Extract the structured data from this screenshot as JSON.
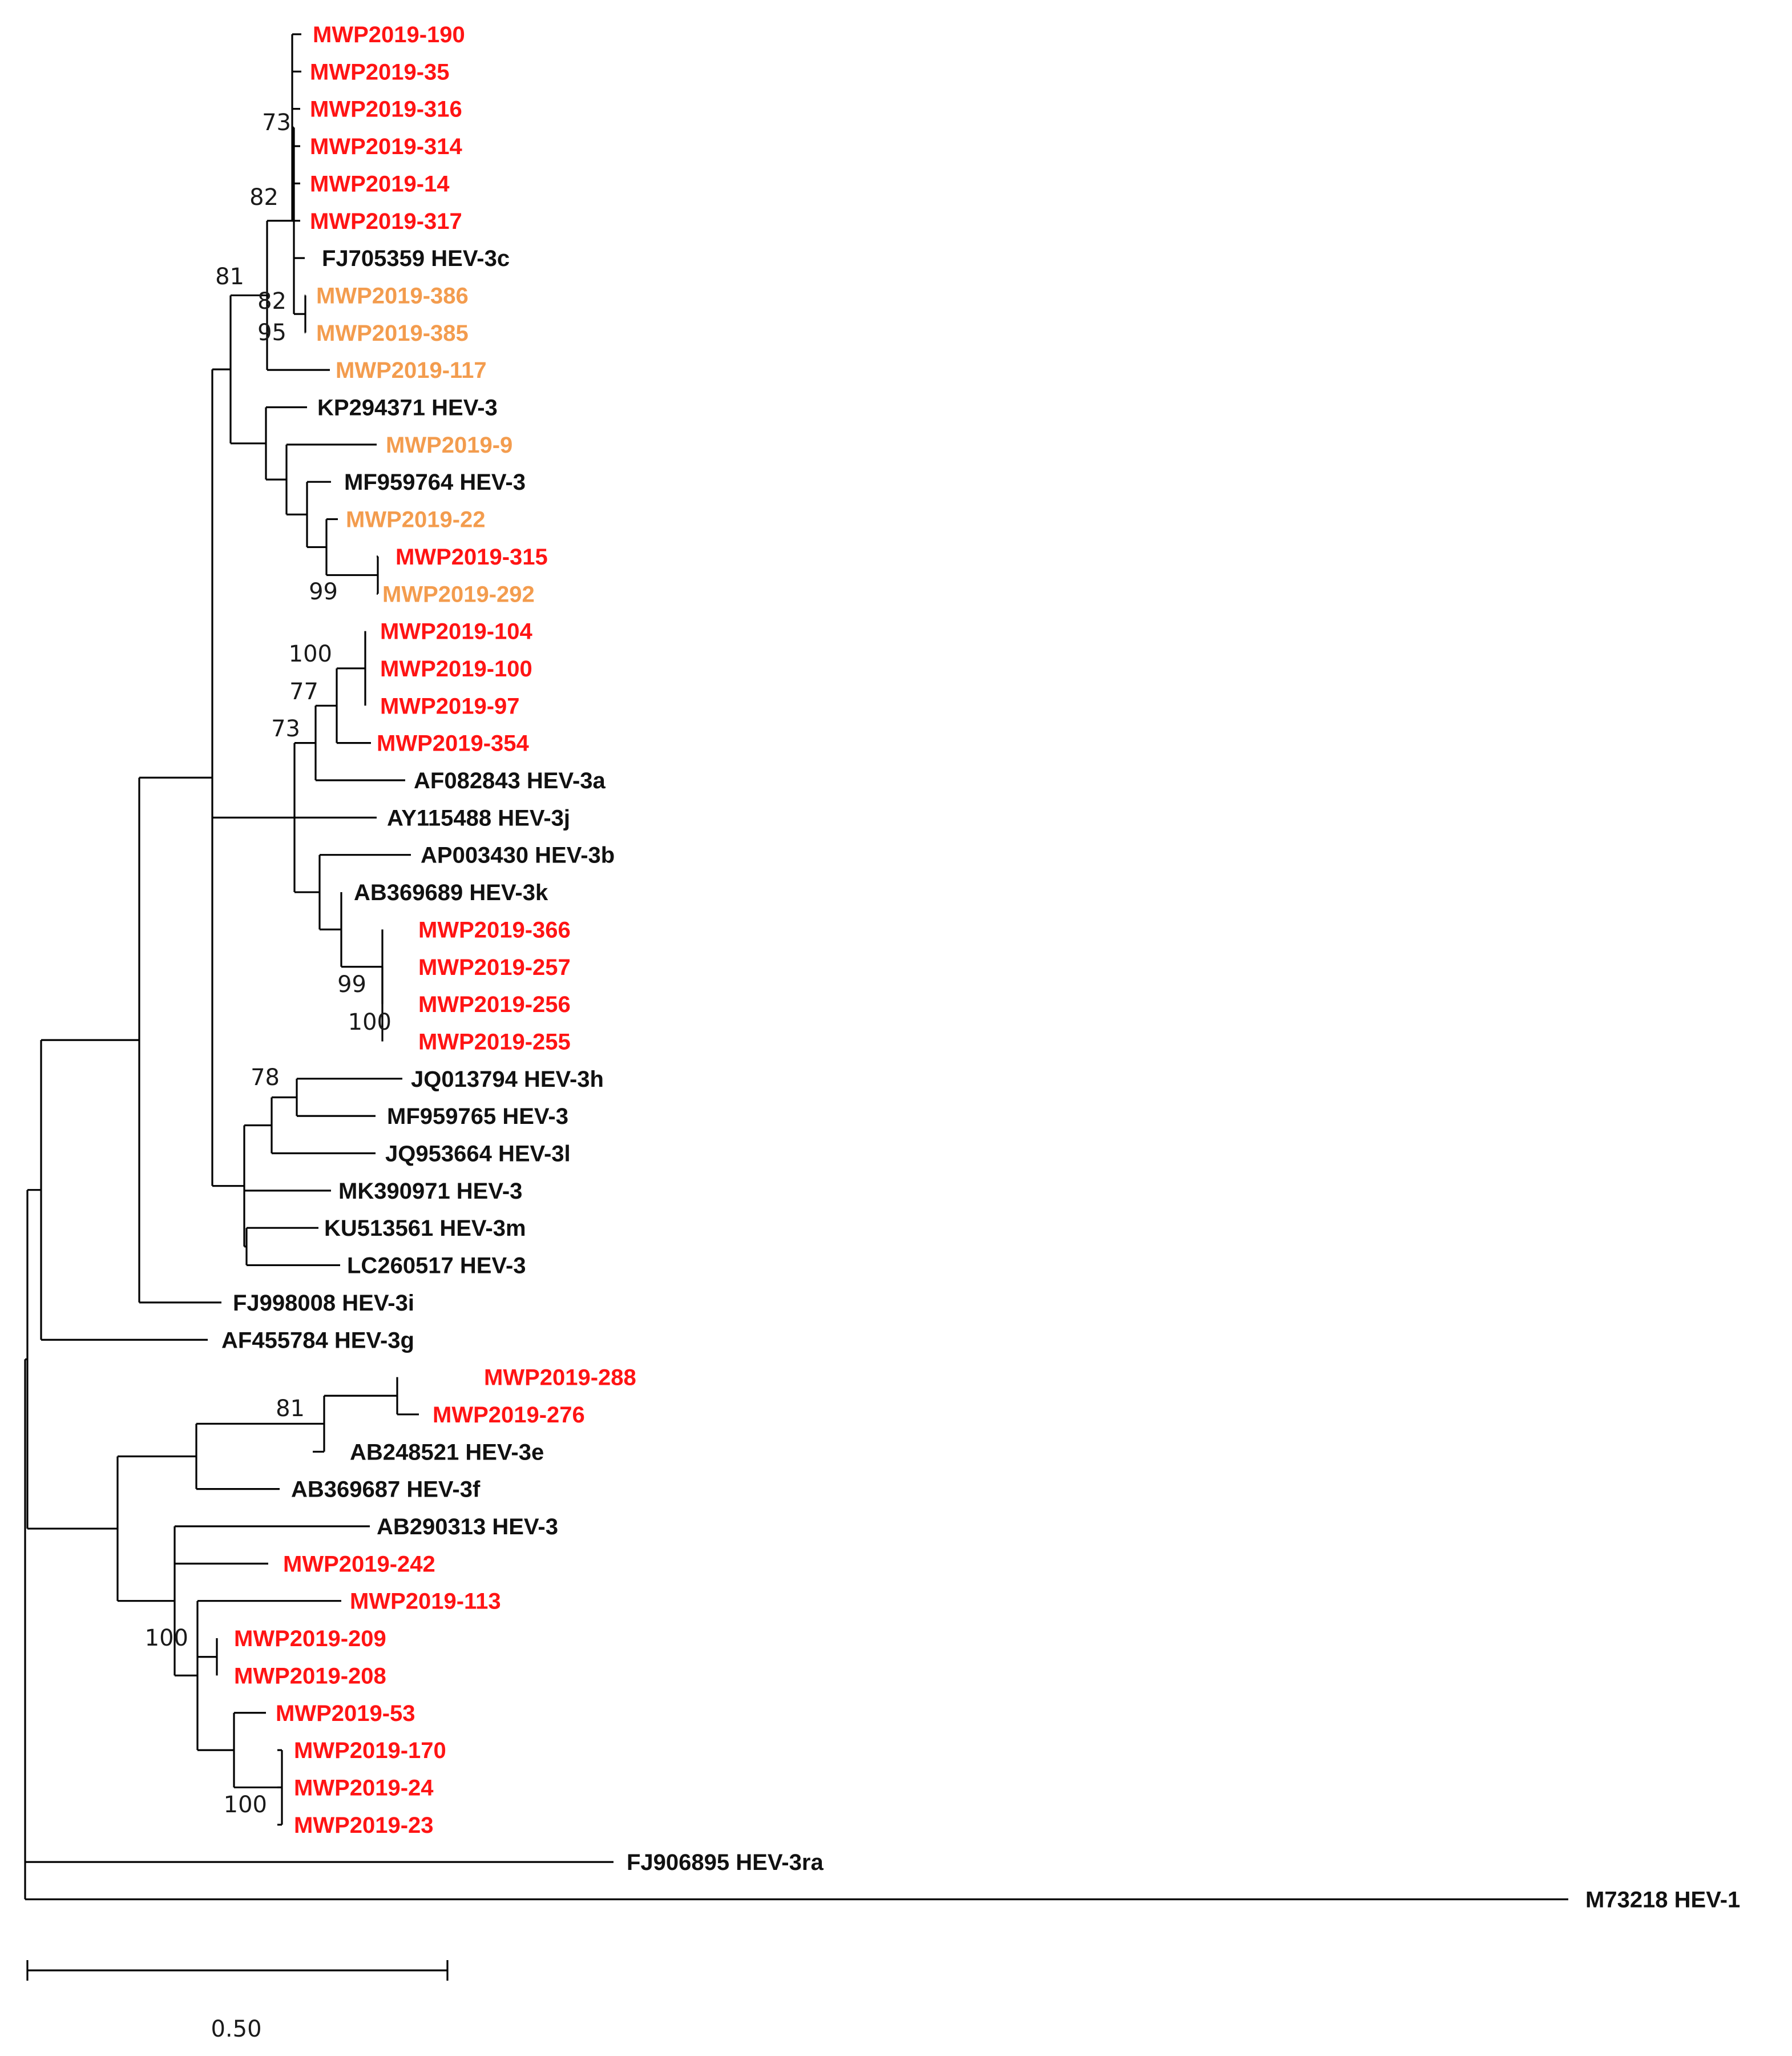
{
  "colors": {
    "red": "#ff1414",
    "orange": "#f39c4e",
    "black": "#111111"
  },
  "leaves": [
    {
      "label": "MWP2019-190",
      "color": "red"
    },
    {
      "label": "MWP2019-35",
      "color": "red"
    },
    {
      "label": "MWP2019-316",
      "color": "red"
    },
    {
      "label": "MWP2019-314",
      "color": "red"
    },
    {
      "label": "MWP2019-14",
      "color": "red"
    },
    {
      "label": "MWP2019-317",
      "color": "red"
    },
    {
      "label": "FJ705359 HEV-3c",
      "color": "black"
    },
    {
      "label": "MWP2019-386",
      "color": "orange"
    },
    {
      "label": "MWP2019-385",
      "color": "orange"
    },
    {
      "label": "MWP2019-117",
      "color": "orange"
    },
    {
      "label": "KP294371 HEV-3",
      "color": "black"
    },
    {
      "label": "MWP2019-9",
      "color": "orange"
    },
    {
      "label": "MF959764 HEV-3",
      "color": "black"
    },
    {
      "label": "MWP2019-22",
      "color": "orange"
    },
    {
      "label": "MWP2019-315",
      "color": "red"
    },
    {
      "label": "MWP2019-292",
      "color": "orange"
    },
    {
      "label": "MWP2019-104",
      "color": "red"
    },
    {
      "label": "MWP2019-100",
      "color": "red"
    },
    {
      "label": "MWP2019-97",
      "color": "red"
    },
    {
      "label": "MWP2019-354",
      "color": "red"
    },
    {
      "label": "AF082843 HEV-3a",
      "color": "black"
    },
    {
      "label": "AY115488 HEV-3j",
      "color": "black"
    },
    {
      "label": "AP003430 HEV-3b",
      "color": "black"
    },
    {
      "label": "AB369689 HEV-3k",
      "color": "black"
    },
    {
      "label": "MWP2019-366",
      "color": "red"
    },
    {
      "label": "MWP2019-257",
      "color": "red"
    },
    {
      "label": "MWP2019-256",
      "color": "red"
    },
    {
      "label": "MWP2019-255",
      "color": "red"
    },
    {
      "label": "JQ013794 HEV-3h",
      "color": "black"
    },
    {
      "label": "MF959765 HEV-3",
      "color": "black"
    },
    {
      "label": "JQ953664 HEV-3l",
      "color": "black"
    },
    {
      "label": "MK390971 HEV-3",
      "color": "black"
    },
    {
      "label": "KU513561 HEV-3m",
      "color": "black"
    },
    {
      "label": "LC260517 HEV-3",
      "color": "black"
    },
    {
      "label": "FJ998008 HEV-3i",
      "color": "black"
    },
    {
      "label": "AF455784 HEV-3g",
      "color": "black"
    },
    {
      "label": "MWP2019-288",
      "color": "red"
    },
    {
      "label": "MWP2019-276",
      "color": "red"
    },
    {
      "label": "AB248521 HEV-3e",
      "color": "black"
    },
    {
      "label": "AB369687 HEV-3f",
      "color": "black"
    },
    {
      "label": "AB290313 HEV-3",
      "color": "black"
    },
    {
      "label": "MWP2019-242",
      "color": "red"
    },
    {
      "label": "MWP2019-113",
      "color": "red"
    },
    {
      "label": "MWP2019-209",
      "color": "red"
    },
    {
      "label": "MWP2019-208",
      "color": "red"
    },
    {
      "label": "MWP2019-53",
      "color": "red"
    },
    {
      "label": "MWP2019-170",
      "color": "red"
    },
    {
      "label": "MWP2019-24",
      "color": "red"
    },
    {
      "label": "MWP2019-23",
      "color": "red"
    },
    {
      "label": "FJ906895 HEV-3ra",
      "color": "black"
    },
    {
      "label": "M73218 HEV-1",
      "color": "black"
    }
  ],
  "bootstrap": [
    {
      "value": "73"
    },
    {
      "value": "82"
    },
    {
      "value": "81"
    },
    {
      "value": "82"
    },
    {
      "value": "95"
    },
    {
      "value": "99"
    },
    {
      "value": "100"
    },
    {
      "value": "77"
    },
    {
      "value": "73"
    },
    {
      "value": "99"
    },
    {
      "value": "100"
    },
    {
      "value": "78"
    },
    {
      "value": "81"
    },
    {
      "value": "100"
    },
    {
      "value": "100"
    }
  ],
  "scale_bar": {
    "label": "0.50"
  }
}
